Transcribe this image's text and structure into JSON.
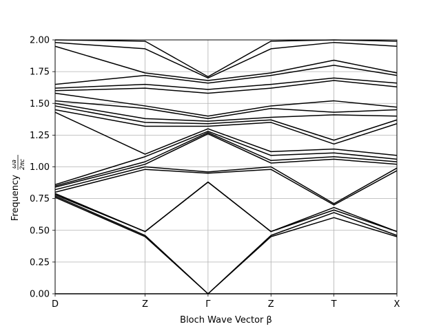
{
  "chart_data": {
    "type": "line",
    "title": "",
    "xlabel": "Bloch Wave Vector β",
    "ylabel_text": "Frequency",
    "ylabel_fraction": {
      "numerator": "ωa",
      "denominator": "2πc"
    },
    "ylim": [
      0.0,
      2.0
    ],
    "grid": true,
    "x_ticks": [
      {
        "label": "D",
        "x": 0.0
      },
      {
        "label": "Z",
        "x": 1.0
      },
      {
        "label": "Γ",
        "x": 1.7
      },
      {
        "label": "Z",
        "x": 2.4
      },
      {
        "label": "T",
        "x": 3.1
      },
      {
        "label": "X",
        "x": 3.8
      }
    ],
    "y_ticks": [
      "0.00",
      "0.25",
      "0.50",
      "0.75",
      "1.00",
      "1.25",
      "1.50",
      "1.75",
      "2.00"
    ],
    "series": [
      {
        "x": [
          0,
          1.0,
          1.7,
          2.4,
          3.1,
          3.8
        ],
        "values": [
          0.0,
          0.0,
          0.0,
          0.0,
          0.0,
          0.0
        ]
      },
      {
        "x": [
          0,
          1.0,
          1.7,
          2.4,
          3.1,
          3.8
        ],
        "values": [
          0.76,
          0.45,
          0.0,
          0.45,
          0.6,
          0.45
        ]
      },
      {
        "x": [
          0,
          1.0,
          1.7,
          2.4,
          3.1,
          3.8
        ],
        "values": [
          0.77,
          0.46,
          0.0,
          0.46,
          0.64,
          0.46
        ]
      },
      {
        "x": [
          0,
          1.0,
          1.7,
          2.4,
          3.1,
          3.8
        ],
        "values": [
          0.78,
          0.49,
          0.88,
          0.49,
          0.66,
          0.49
        ]
      },
      {
        "x": [
          0,
          1.0,
          1.7,
          2.4,
          3.1,
          3.8
        ],
        "values": [
          0.79,
          0.49,
          0.88,
          0.49,
          0.68,
          0.49
        ]
      },
      {
        "x": [
          0,
          1.0,
          1.7,
          2.4,
          3.1,
          3.8
        ],
        "values": [
          0.8,
          0.98,
          0.95,
          0.98,
          0.7,
          0.97
        ]
      },
      {
        "x": [
          0,
          1.0,
          1.7,
          2.4,
          3.1,
          3.8
        ],
        "values": [
          0.82,
          1.0,
          0.96,
          1.0,
          0.71,
          0.99
        ]
      },
      {
        "x": [
          0,
          1.0,
          1.7,
          2.4,
          3.1,
          3.8
        ],
        "values": [
          0.84,
          1.02,
          1.26,
          1.03,
          1.06,
          1.02
        ]
      },
      {
        "x": [
          0,
          1.0,
          1.7,
          2.4,
          3.1,
          3.8
        ],
        "values": [
          0.85,
          1.04,
          1.27,
          1.05,
          1.08,
          1.04
        ]
      },
      {
        "x": [
          0,
          1.0,
          1.7,
          2.4,
          3.1,
          3.8
        ],
        "values": [
          0.86,
          1.08,
          1.28,
          1.09,
          1.11,
          1.06
        ]
      },
      {
        "x": [
          0,
          1.0,
          1.7,
          2.4,
          3.1,
          3.8
        ],
        "values": [
          1.43,
          1.1,
          1.3,
          1.12,
          1.14,
          1.09
        ]
      },
      {
        "x": [
          0,
          1.0,
          1.7,
          2.4,
          3.1,
          3.8
        ],
        "values": [
          1.45,
          1.32,
          1.32,
          1.35,
          1.18,
          1.34
        ]
      },
      {
        "x": [
          0,
          1.0,
          1.7,
          2.4,
          3.1,
          3.8
        ],
        "values": [
          1.48,
          1.35,
          1.34,
          1.37,
          1.21,
          1.37
        ]
      },
      {
        "x": [
          0,
          1.0,
          1.7,
          2.4,
          3.1,
          3.8
        ],
        "values": [
          1.5,
          1.38,
          1.36,
          1.39,
          1.41,
          1.4
        ]
      },
      {
        "x": [
          0,
          1.0,
          1.7,
          2.4,
          3.1,
          3.8
        ],
        "values": [
          1.52,
          1.46,
          1.38,
          1.46,
          1.43,
          1.45
        ]
      },
      {
        "x": [
          0,
          1.0,
          1.7,
          2.4,
          3.1,
          3.8
        ],
        "values": [
          1.58,
          1.48,
          1.4,
          1.48,
          1.52,
          1.47
        ]
      },
      {
        "x": [
          0,
          1.0,
          1.7,
          2.4,
          3.1,
          3.8
        ],
        "values": [
          1.6,
          1.62,
          1.58,
          1.62,
          1.68,
          1.63
        ]
      },
      {
        "x": [
          0,
          1.0,
          1.7,
          2.4,
          3.1,
          3.8
        ],
        "values": [
          1.62,
          1.65,
          1.61,
          1.65,
          1.7,
          1.66
        ]
      },
      {
        "x": [
          0,
          1.0,
          1.7,
          2.4,
          3.1,
          3.8
        ],
        "values": [
          1.65,
          1.72,
          1.66,
          1.72,
          1.8,
          1.72
        ]
      },
      {
        "x": [
          0,
          1.0,
          1.7,
          2.4,
          3.1,
          3.8
        ],
        "values": [
          1.95,
          1.74,
          1.68,
          1.74,
          1.84,
          1.74
        ]
      },
      {
        "x": [
          0,
          1.0,
          1.7,
          2.4,
          3.1,
          3.8
        ],
        "values": [
          1.98,
          1.93,
          1.7,
          1.93,
          1.98,
          1.95
        ]
      },
      {
        "x": [
          0,
          1.0,
          1.7,
          2.4,
          3.1,
          3.8
        ],
        "values": [
          2.0,
          1.99,
          1.71,
          1.99,
          2.0,
          1.99
        ]
      }
    ]
  }
}
